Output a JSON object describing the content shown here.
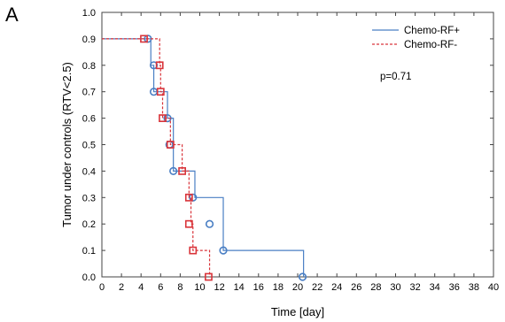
{
  "panel_label": "A",
  "chart_data": {
    "type": "line",
    "xlabel": "Time [day]",
    "ylabel": "Tumor under controls (RTV<2.5)",
    "xlim": [
      0,
      40
    ],
    "ylim": [
      0,
      1.0
    ],
    "x_ticks": [
      "0",
      "2",
      "4",
      "6",
      "8",
      "10",
      "12",
      "14",
      "16",
      "18",
      "20",
      "22",
      "24",
      "26",
      "28",
      "30",
      "32",
      "34",
      "36",
      "38",
      "40"
    ],
    "y_ticks": [
      "0.0",
      "0.1",
      "0.2",
      "0.3",
      "0.4",
      "0.5",
      "0.6",
      "0.7",
      "0.8",
      "0.9",
      "1.0"
    ],
    "grid": false,
    "legend_position": "top-right",
    "annotation": "p=0.71",
    "series": [
      {
        "name": "Chemo-RF+",
        "color": "#4a7fc4",
        "line_style": "solid",
        "marker": "circle",
        "steps": [
          [
            0,
            0.9
          ],
          [
            5.0,
            0.8
          ],
          [
            5.3,
            0.7
          ],
          [
            6.7,
            0.6
          ],
          [
            7.3,
            0.4
          ],
          [
            9.5,
            0.3
          ],
          [
            12.4,
            0.1
          ],
          [
            20.6,
            0.0
          ]
        ],
        "markers": [
          [
            4.7,
            0.9
          ],
          [
            5.3,
            0.8
          ],
          [
            5.3,
            0.7
          ],
          [
            6.7,
            0.6
          ],
          [
            6.9,
            0.5
          ],
          [
            7.3,
            0.4
          ],
          [
            9.3,
            0.3
          ],
          [
            11.0,
            0.2
          ],
          [
            12.4,
            0.1
          ],
          [
            20.5,
            0.0
          ]
        ]
      },
      {
        "name": "Chemo-RF-",
        "color": "#d9343a",
        "line_style": "dashed",
        "marker": "square",
        "steps": [
          [
            0,
            0.9
          ],
          [
            5.9,
            0.8
          ],
          [
            6.0,
            0.7
          ],
          [
            6.2,
            0.6
          ],
          [
            7.0,
            0.5
          ],
          [
            8.2,
            0.4
          ],
          [
            8.9,
            0.3
          ],
          [
            9.1,
            0.2
          ],
          [
            9.3,
            0.1
          ],
          [
            11.0,
            0.0
          ]
        ],
        "markers": [
          [
            4.3,
            0.9
          ],
          [
            5.9,
            0.8
          ],
          [
            6.0,
            0.7
          ],
          [
            6.2,
            0.6
          ],
          [
            7.0,
            0.5
          ],
          [
            8.2,
            0.4
          ],
          [
            8.9,
            0.3
          ],
          [
            8.9,
            0.2
          ],
          [
            9.3,
            0.1
          ],
          [
            10.9,
            0.0
          ]
        ]
      }
    ]
  }
}
